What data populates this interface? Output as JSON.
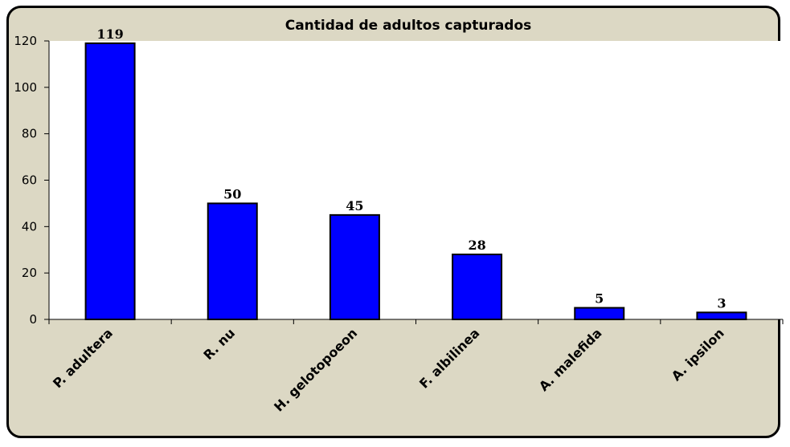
{
  "chart_data": {
    "type": "bar",
    "title": "Cantidad de adultos capturados",
    "xlabel": "",
    "ylabel": "",
    "categories": [
      "P. adultera",
      "R. nu",
      "H. gelotopoeon",
      "F. albilinea",
      "A. malefida",
      "A. ipsilon"
    ],
    "values": [
      119,
      50,
      45,
      28,
      5,
      3
    ],
    "data_labels": [
      "119",
      "50",
      "45",
      "28",
      "5",
      "3"
    ],
    "ylim": [
      0,
      120
    ],
    "yticks": [
      0,
      20,
      40,
      60,
      80,
      100,
      120
    ],
    "grid": false,
    "legend": "none",
    "colors": {
      "bar_fill": "#0000ff",
      "bar_stroke": "#000000",
      "plot_bg": "#ffffff",
      "chart_bg": "#dcd8c4"
    }
  }
}
